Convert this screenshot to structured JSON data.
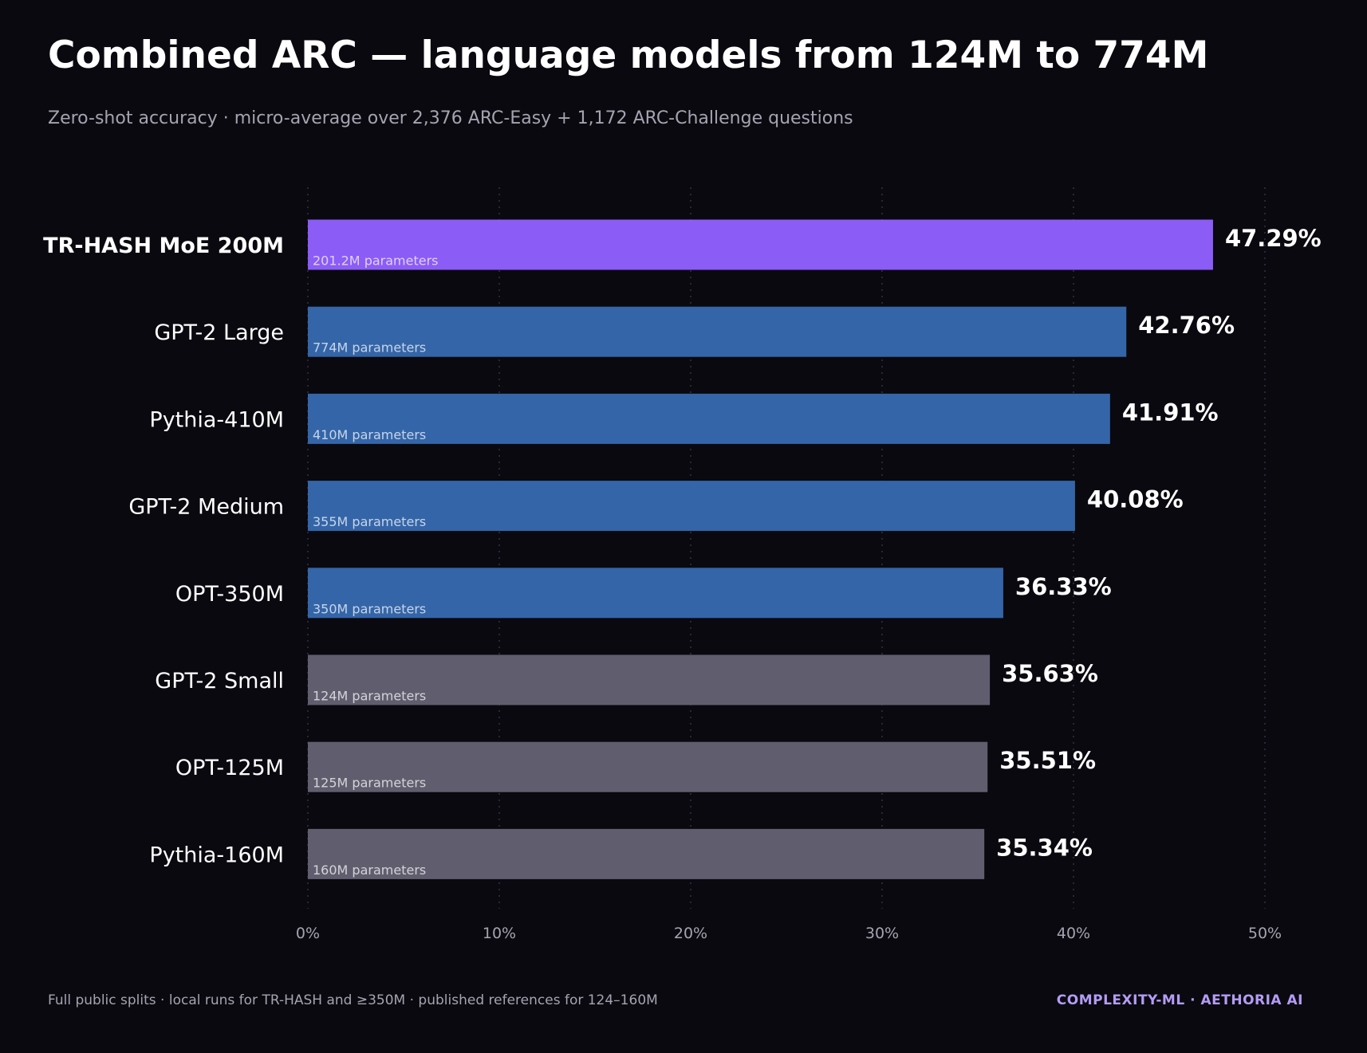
{
  "header": {
    "title": "Combined ARC — language models from 124M to 774M",
    "subtitle": "Zero-shot accuracy · micro-average over 2,376 ARC-Easy + 1,172 ARC-Challenge questions"
  },
  "footer": {
    "note": "Full public splits · local runs for TR-HASH and ≥350M · published references for 124–160M",
    "brand": "COMPLEXITY-ML · AETHORIA AI"
  },
  "colors": {
    "highlight": "#8b5cf6",
    "large": "#3465a8",
    "small": "#605e6e",
    "grid": "#3a3847",
    "tick": "#a6a3b0"
  },
  "chart_data": {
    "type": "bar",
    "orientation": "horizontal",
    "title": "Combined ARC — language models from 124M to 774M",
    "xlabel": "",
    "ylabel": "",
    "xlim": [
      0,
      50
    ],
    "xticks": [
      0,
      10,
      20,
      30,
      40,
      50
    ],
    "tick_format": "{v}%",
    "grid": "vertical dotted",
    "bars": [
      {
        "label": "TR-HASH MoE 200M",
        "params": "201.2M parameters",
        "value": 47.29,
        "value_label": "47.29%",
        "group": "highlight"
      },
      {
        "label": "GPT-2 Large",
        "params": "774M parameters",
        "value": 42.76,
        "value_label": "42.76%",
        "group": "large"
      },
      {
        "label": "Pythia-410M",
        "params": "410M parameters",
        "value": 41.91,
        "value_label": "41.91%",
        "group": "large"
      },
      {
        "label": "GPT-2 Medium",
        "params": "355M parameters",
        "value": 40.08,
        "value_label": "40.08%",
        "group": "large"
      },
      {
        "label": "OPT-350M",
        "params": "350M parameters",
        "value": 36.33,
        "value_label": "36.33%",
        "group": "large"
      },
      {
        "label": "GPT-2 Small",
        "params": "124M parameters",
        "value": 35.63,
        "value_label": "35.63%",
        "group": "small"
      },
      {
        "label": "OPT-125M",
        "params": "125M parameters",
        "value": 35.51,
        "value_label": "35.51%",
        "group": "small"
      },
      {
        "label": "Pythia-160M",
        "params": "160M parameters",
        "value": 35.34,
        "value_label": "35.34%",
        "group": "small"
      }
    ]
  }
}
